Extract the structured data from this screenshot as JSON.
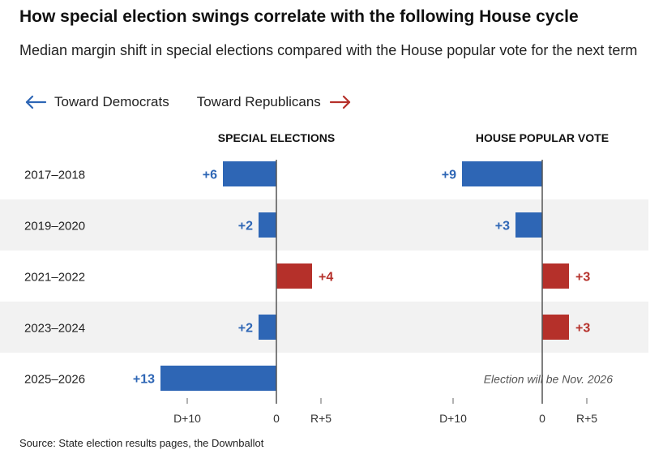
{
  "title": "How special election swings correlate with the following House cycle",
  "subtitle": "Median margin shift in special elections compared with the House popular vote for the next term",
  "legend": {
    "dem": {
      "label": "Toward Democrats",
      "color": "#2e66b5",
      "icon": "arrow-left-icon"
    },
    "rep": {
      "label": "Toward Republicans",
      "color": "#b5302a",
      "icon": "arrow-right-icon"
    }
  },
  "source": "Source: State election results pages, the Downballot",
  "colors": {
    "dem": "#2e66b5",
    "rep": "#b5302a",
    "band": "#f2f2f2",
    "axis": "#555555",
    "tick": "#666666"
  },
  "chart_data": {
    "type": "bar",
    "orientation": "horizontal",
    "categories": [
      "2017–2018",
      "2019–2020",
      "2021–2022",
      "2023–2024",
      "2025–2026"
    ],
    "value_note": "signed margin shift in points; negative = toward Democrats (D), positive = toward Republicans (R)",
    "panels": [
      {
        "title": "SPECIAL ELECTIONS",
        "values": [
          -6,
          -2,
          4,
          -2,
          -13
        ],
        "labels": [
          "+6",
          "+2",
          "+4",
          "+2",
          "+13"
        ],
        "xlim": [
          -15,
          7
        ],
        "ticks": [
          -10,
          0,
          5
        ],
        "tick_labels": [
          "D+10",
          "0",
          "R+5"
        ]
      },
      {
        "title": "HOUSE POPULAR VOTE",
        "values": [
          -9,
          -3,
          3,
          3,
          null
        ],
        "labels": [
          "+9",
          "+3",
          "+3",
          "+3",
          ""
        ],
        "note": "Election will be Nov. 2026",
        "xlim": [
          -13,
          9
        ],
        "ticks": [
          -10,
          0,
          5
        ],
        "tick_labels": [
          "D+10",
          "0",
          "R+5"
        ]
      }
    ]
  }
}
